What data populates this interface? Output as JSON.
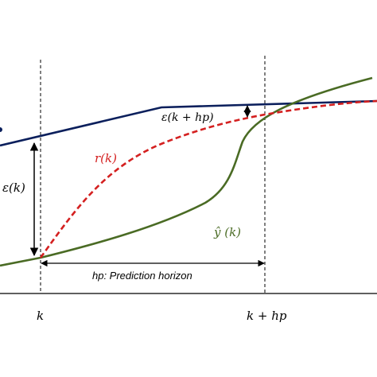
{
  "labels": {
    "epsilon_k": "ε(k)",
    "epsilon_k_hp": "ε(k + hp)",
    "r_k": "r(k)",
    "y_hat_k": "ŷ (k)",
    "horizon": "hp: Prediction horizon",
    "tick_k": "k",
    "tick_k_hp": "k + hp"
  },
  "colors": {
    "setpoint_line": "#0b1f5c",
    "reference_trajectory": "#d42020",
    "predicted_output": "#4a6b24",
    "annotation": "#000000"
  }
}
